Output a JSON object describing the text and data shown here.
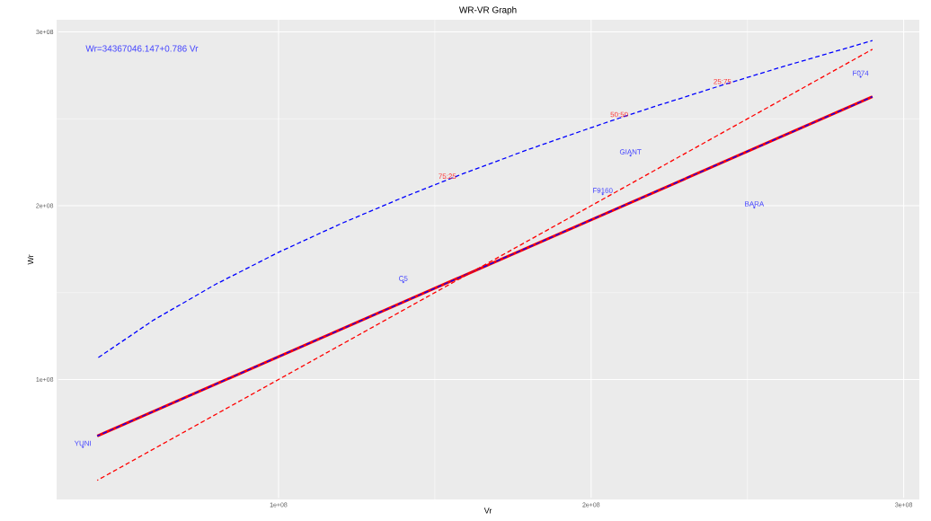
{
  "chart_data": {
    "type": "line",
    "title": "WR-VR Graph",
    "xlabel": "Vr",
    "ylabel": "Wr",
    "xlim": [
      29000000,
      305000000
    ],
    "ylim": [
      31000000,
      307000000
    ],
    "xticks": [
      {
        "value": 100000000,
        "label": "1e+08"
      },
      {
        "value": 200000000,
        "label": "2e+08"
      },
      {
        "value": 300000000,
        "label": "3e+08"
      }
    ],
    "yticks": [
      {
        "value": 100000000,
        "label": "1e+08"
      },
      {
        "value": 200000000,
        "label": "2e+08"
      },
      {
        "value": 300000000,
        "label": "3e+08"
      }
    ],
    "grid": true,
    "series": [
      {
        "color": "#ff0000",
        "line_style": "solid",
        "x": [
          42000000,
          290000000
        ],
        "values": [
          67500000,
          262700000
        ]
      },
      {
        "color": "#0000ff",
        "line_style": "dashed",
        "x": [
          42000000,
          290000000
        ],
        "values": [
          67500000,
          262700000
        ]
      },
      {
        "color": "#ff0000",
        "line_style": "dashed",
        "x": [
          42000000,
          290000000
        ],
        "values": [
          42000000,
          290000000
        ]
      },
      {
        "color": "#0000ff",
        "line_style": "dashed",
        "x": [
          42000000,
          60000000,
          80000000,
          100000000,
          120000000,
          140000000,
          154000000,
          160000000,
          180000000,
          200000000,
          209000000,
          220000000,
          242000000,
          260000000,
          280000000,
          290000000
        ],
        "values": [
          112200000,
          134200000,
          154900000,
          173200000,
          189700000,
          204900000,
          214900000,
          219100000,
          232400000,
          244900000,
          250400000,
          256900000,
          269400000,
          279300000,
          289800000,
          295000000
        ]
      },
      {
        "type": "scatter",
        "marker": "none",
        "color": "#4444ff",
        "x": [
          37400000,
          139900000,
          203700000,
          212600000,
          252200000,
          286200000
        ],
        "values": [
          61200000,
          156100000,
          206700000,
          228900000,
          199000000,
          274200000
        ],
        "value_labels": [
          "YUNI",
          "C5",
          "F9160",
          "GIANT",
          "BARA",
          "F074"
        ]
      }
    ],
    "annotations": [
      "Wr=34367046.147+0.786 Vr",
      {
        "text": "75:25",
        "x": 154000000,
        "y": 214900000
      },
      {
        "text": "50:50",
        "x": 209000000,
        "y": 250400000
      },
      {
        "text": "25:75",
        "x": 242000000,
        "y": 269400000
      }
    ]
  }
}
